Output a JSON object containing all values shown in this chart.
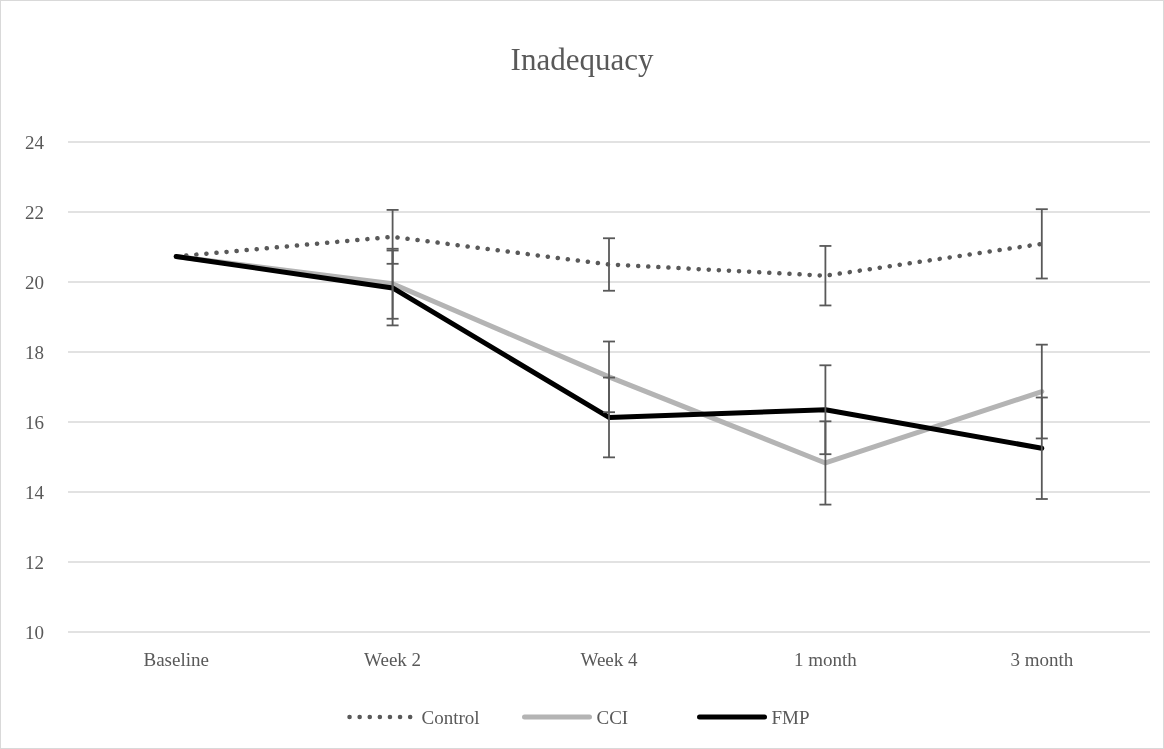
{
  "chart_data": {
    "type": "line",
    "title": "Inadequacy",
    "categories": [
      "Baseline",
      "Week 2",
      "Week 4",
      "1 month",
      "3 month"
    ],
    "series": [
      {
        "name": "Control",
        "color": "#595959",
        "line_style": "dotted",
        "values": [
          20.73,
          21.29,
          20.5,
          20.18,
          21.09
        ],
        "errors": [
          null,
          0.77,
          0.75,
          0.85,
          0.99
        ]
      },
      {
        "name": "CCI",
        "color": "#b4b4b4",
        "line_style": "solid",
        "values": [
          20.73,
          19.95,
          17.29,
          14.83,
          16.87
        ],
        "errors": [
          null,
          1.0,
          1.01,
          1.19,
          1.34
        ]
      },
      {
        "name": "FMP",
        "color": "#000000",
        "line_style": "solid",
        "values": [
          20.73,
          19.83,
          16.13,
          16.35,
          15.25
        ],
        "errors": [
          null,
          1.07,
          1.14,
          1.27,
          1.45
        ]
      }
    ],
    "ylim": [
      10,
      24
    ],
    "yticks": [
      10,
      12,
      14,
      16,
      18,
      20,
      22,
      24
    ],
    "grid": "y",
    "legend": "bottom"
  }
}
